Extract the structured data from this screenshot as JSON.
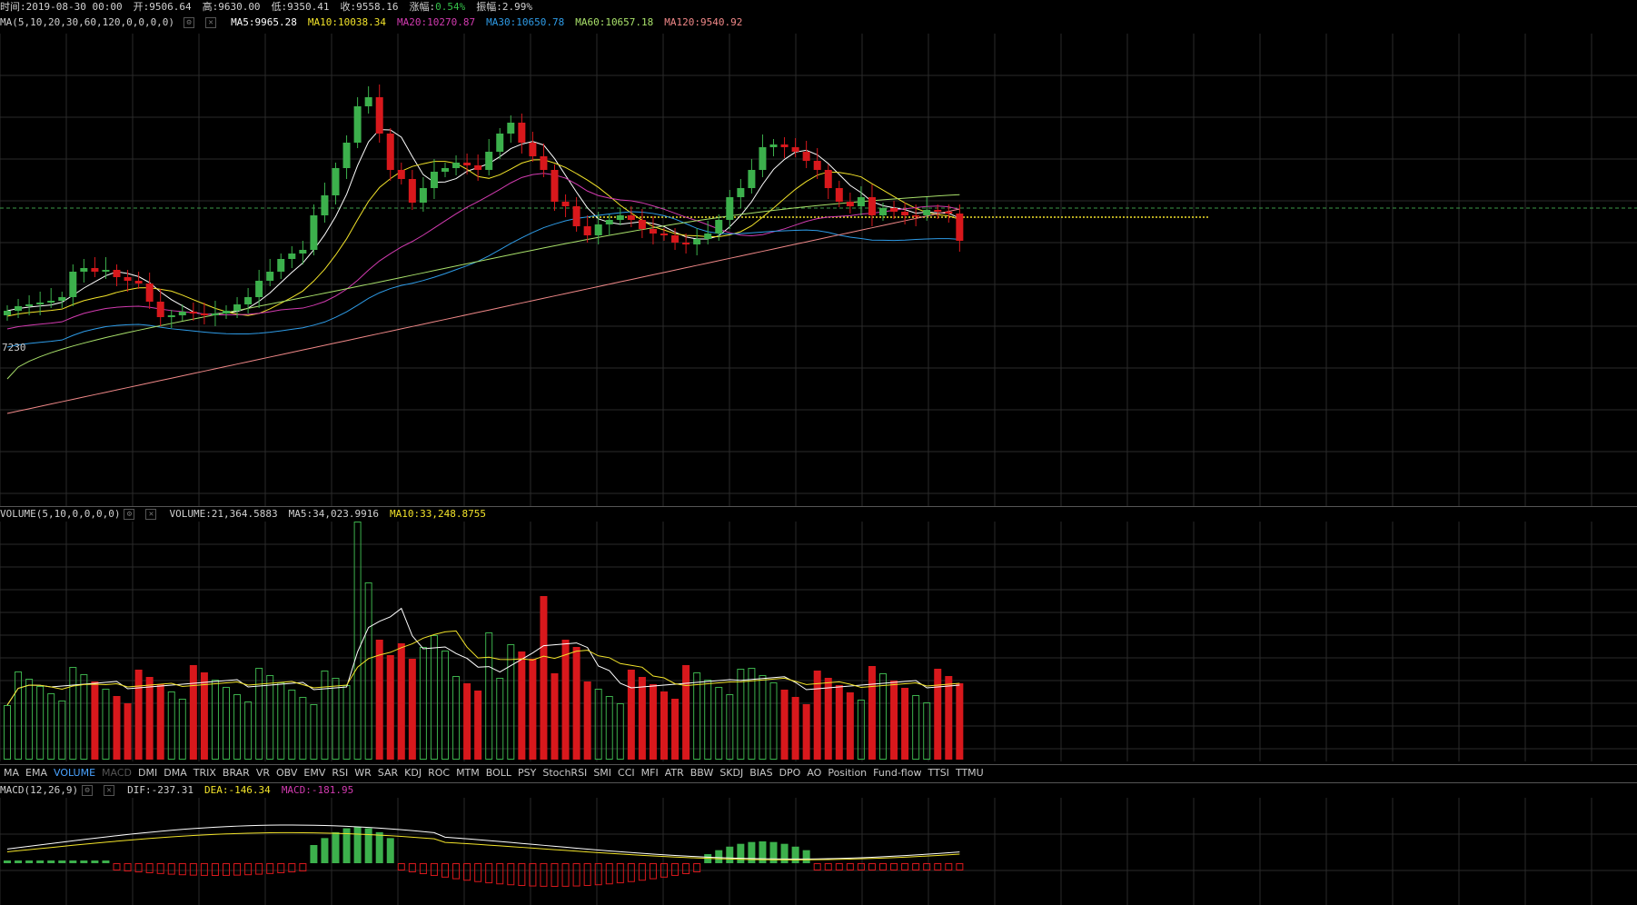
{
  "header": {
    "time": "时间:2019-08-30 00:00",
    "open": "开:9506.64",
    "high": "高:9630.00",
    "low": "低:9350.41",
    "close": "收:9558.16",
    "change_label": "涨幅:",
    "change_value": "0.54%",
    "amplitude": "振幅:2.99%"
  },
  "ma_legend": {
    "title": "MA(5,10,20,30,60,120,0,0,0,0)",
    "ma5": "MA5:9965.28",
    "ma10": "MA10:10038.34",
    "ma20": "MA20:10270.87",
    "ma30": "MA30:10650.78",
    "ma60": "MA60:10657.18",
    "ma120": "MA120:9540.92"
  },
  "y_tick": "7230",
  "volume_legend": {
    "title": "VOLUME(5,10,0,0,0,0)",
    "volume": "VOLUME:21,364.5883",
    "ma5": "MA5:34,023.9916",
    "ma10": "MA10:33,248.8755"
  },
  "indicator_tabs": [
    "MA",
    "EMA",
    "VOLUME",
    "MACD",
    "DMI",
    "DMA",
    "TRIX",
    "BRAR",
    "VR",
    "OBV",
    "EMV",
    "RSI",
    "WR",
    "SAR",
    "KDJ",
    "ROC",
    "MTM",
    "BOLL",
    "PSY",
    "StochRSI",
    "SMI",
    "CCI",
    "MFI",
    "ATR",
    "BBW",
    "SKDJ",
    "BIAS",
    "DPO",
    "AO",
    "Position",
    "Fund-flow",
    "TTSI",
    "TTMU"
  ],
  "active_tab": "VOLUME",
  "disabled_tab": "MACD",
  "macd_legend": {
    "title": "MACD(12,26,9)",
    "dif": "DIF:-237.31",
    "dea": "DEA:-146.34",
    "macd": "MACD:-181.95"
  },
  "colors": {
    "up": "#3cb04c",
    "down": "#d8181c",
    "ma5": "#ffffff",
    "ma10": "#f2e32a",
    "ma20": "#d23bb0",
    "ma30": "#2e9be6",
    "ma60": "#a8e06a",
    "ma120": "#f08888",
    "grid": "#2a2a2a",
    "green_text": "#35c24a"
  },
  "chart_data": [
    {
      "type": "candlestick",
      "series": [
        {
          "name": "MA5"
        },
        {
          "name": "MA10"
        },
        {
          "name": "MA20"
        },
        {
          "name": "MA30"
        },
        {
          "name": "MA60"
        },
        {
          "name": "MA120"
        }
      ],
      "last_candle": {
        "open": 9506.64,
        "high": 9630.0,
        "low": 9350.41,
        "close": 9558.16
      }
    },
    {
      "type": "bar",
      "series": [
        {
          "name": "VOLUME"
        },
        {
          "name": "MA5"
        },
        {
          "name": "MA10"
        }
      ],
      "last_value": 21364.5883
    },
    {
      "type": "bar",
      "series": [
        {
          "name": "DIF"
        },
        {
          "name": "DEA"
        },
        {
          "name": "MACD"
        }
      ],
      "last_values": {
        "DIF": -237.31,
        "DEA": -146.34,
        "MACD": -181.95
      }
    }
  ]
}
